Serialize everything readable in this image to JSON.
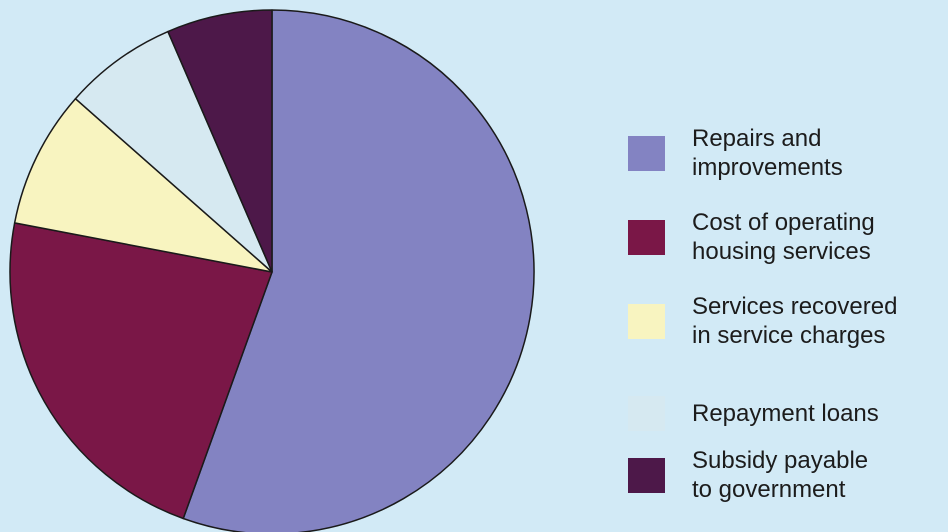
{
  "chart_data": {
    "type": "pie",
    "title": "",
    "slices": [
      {
        "label": "Repairs and\nimprovements",
        "value": 55.5,
        "color": "#8383c2"
      },
      {
        "label": "Cost of operating\nhousing services",
        "value": 22.5,
        "color": "#7a1747"
      },
      {
        "label": "Services recovered\nin service charges",
        "value": 8.5,
        "color": "#f8f4c0"
      },
      {
        "label": "Repayment loans",
        "value": 7.0,
        "color": "#d6e9f1"
      },
      {
        "label": "Subsidy payable\nto government",
        "value": 6.5,
        "color": "#4d1849"
      }
    ],
    "legend_position": "right",
    "start_angle": "top",
    "direction": "clockwise"
  }
}
